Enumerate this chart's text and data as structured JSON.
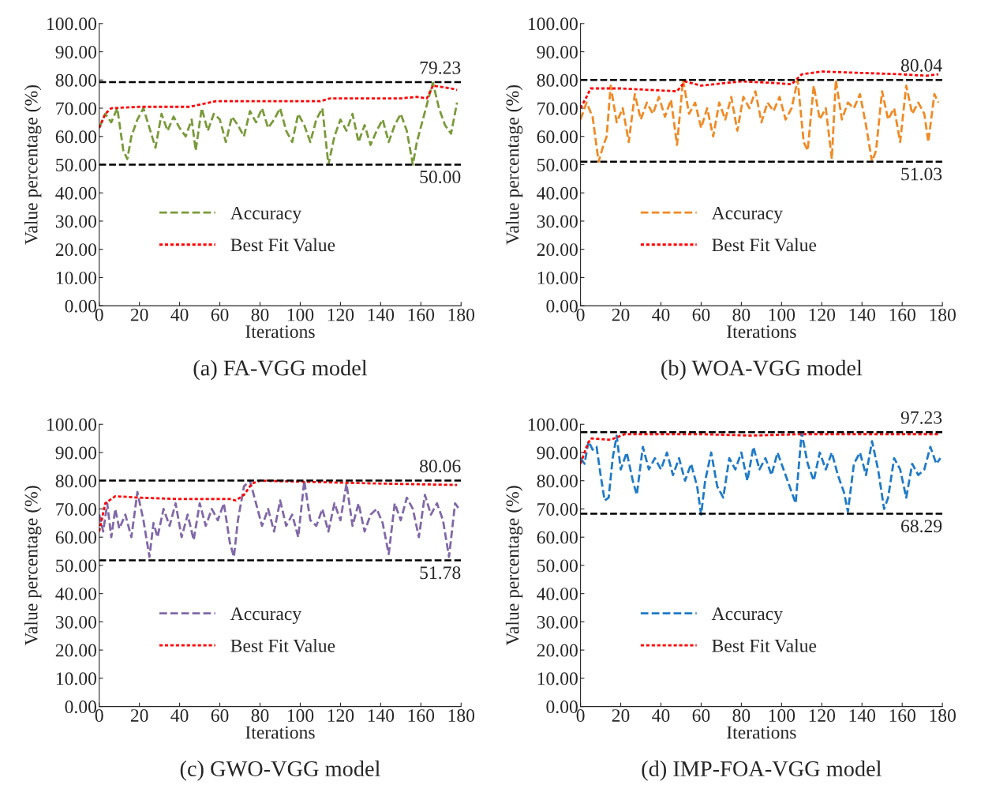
{
  "chart_data": [
    {
      "type": "line",
      "title": "(a) FA-VGG model",
      "xlabel": "Iterations",
      "ylabel": "Value percentage (%)",
      "xlim": [
        0,
        180
      ],
      "xticks": [
        0,
        20,
        40,
        60,
        80,
        100,
        120,
        140,
        160,
        180
      ],
      "ylim": [
        0,
        100
      ],
      "yticks": [
        {
          "value": 0,
          "label": "0.00"
        },
        {
          "value": 10,
          "label": "10.00"
        },
        {
          "value": 20,
          "label": "20.00"
        },
        {
          "value": 30,
          "label": "30.00"
        },
        {
          "value": 40,
          "label": "40.00"
        },
        {
          "value": 50,
          "label": "50.00"
        },
        {
          "value": 60,
          "label": "60.00"
        },
        {
          "value": 70,
          "label": "70.00"
        },
        {
          "value": 80,
          "label": "80.00"
        },
        {
          "value": 90,
          "label": "90.00"
        },
        {
          "value": 100,
          "label": "100.00"
        }
      ],
      "grid": false,
      "legend": "bottom left",
      "marker": "none",
      "series": [
        {
          "name": "Accuracy",
          "color": "#7a9a3a",
          "line_style": "dashed",
          "x": [
            0,
            3,
            6,
            9,
            12,
            14,
            16,
            19,
            22,
            25,
            28,
            31,
            34,
            37,
            40,
            43,
            46,
            48,
            51,
            54,
            57,
            60,
            63,
            66,
            69,
            72,
            75,
            78,
            81,
            84,
            87,
            90,
            93,
            96,
            99,
            102,
            105,
            108,
            111,
            114,
            117,
            120,
            123,
            126,
            129,
            132,
            135,
            138,
            141,
            144,
            147,
            150,
            153,
            156,
            158,
            161,
            164,
            166,
            169,
            172,
            175,
            178
          ],
          "values": [
            63,
            68,
            65,
            70,
            55,
            52,
            60,
            66,
            70,
            63,
            56,
            68,
            62,
            67,
            63,
            60,
            66,
            55,
            70,
            62,
            68,
            66,
            58,
            67,
            64,
            60,
            69,
            65,
            70,
            63,
            66,
            70,
            62,
            58,
            68,
            64,
            58,
            66,
            70,
            50,
            60,
            66,
            62,
            68,
            58,
            64,
            57,
            62,
            66,
            58,
            64,
            68,
            62,
            50,
            58,
            66,
            74,
            79,
            70,
            64,
            61,
            72
          ]
        },
        {
          "name": "Best Fit Value",
          "color": "#ff0000",
          "line_style": "dotted",
          "x": [
            0,
            3,
            6,
            20,
            45,
            58,
            80,
            110,
            115,
            150,
            158,
            163,
            166,
            175,
            178
          ],
          "values": [
            63,
            68,
            70,
            70.5,
            70.5,
            72.5,
            72.5,
            72.5,
            73.5,
            73.5,
            74,
            73.5,
            78,
            77,
            76.5
          ]
        }
      ],
      "ref_lines": [
        {
          "axis": "y",
          "value": 79.23,
          "label": "79.23",
          "color": "#000000",
          "line_style": "dashed"
        },
        {
          "axis": "y",
          "value": 50.0,
          "label": "50.00",
          "color": "#000000",
          "line_style": "dashed"
        }
      ]
    },
    {
      "type": "line",
      "title": "(b) WOA-VGG model",
      "xlabel": "Iterations",
      "ylabel": "Value percentage (%)",
      "xlim": [
        0,
        180
      ],
      "xticks": [
        0,
        20,
        40,
        60,
        80,
        100,
        120,
        140,
        160,
        180
      ],
      "ylim": [
        0,
        100
      ],
      "yticks": [
        {
          "value": 0,
          "label": "0.00"
        },
        {
          "value": 10,
          "label": "10.00"
        },
        {
          "value": 20,
          "label": "20.00"
        },
        {
          "value": 30,
          "label": "30.00"
        },
        {
          "value": 40,
          "label": "40.00"
        },
        {
          "value": 50,
          "label": "50.00"
        },
        {
          "value": 60,
          "label": "60.00"
        },
        {
          "value": 70,
          "label": "70.00"
        },
        {
          "value": 80,
          "label": "80.00"
        },
        {
          "value": 90,
          "label": "90.00"
        },
        {
          "value": 100,
          "label": "100.00"
        }
      ],
      "grid": false,
      "legend": "bottom left",
      "marker": "none",
      "series": [
        {
          "name": "Accuracy",
          "color": "#f08a24",
          "line_style": "dashed",
          "x": [
            0,
            3,
            6,
            9,
            11,
            13,
            15,
            18,
            21,
            24,
            27,
            30,
            33,
            36,
            39,
            42,
            45,
            48,
            51,
            54,
            57,
            60,
            63,
            66,
            69,
            72,
            75,
            78,
            81,
            84,
            87,
            90,
            93,
            96,
            99,
            102,
            105,
            108,
            111,
            113,
            116,
            119,
            122,
            125,
            127,
            130,
            133,
            136,
            139,
            142,
            145,
            147,
            150,
            153,
            156,
            159,
            162,
            165,
            168,
            171,
            173,
            176,
            178
          ],
          "values": [
            66,
            72,
            67,
            51,
            56,
            60,
            78,
            65,
            70,
            58,
            75,
            66,
            72,
            68,
            74,
            67,
            73,
            57,
            80,
            68,
            72,
            63,
            70,
            60,
            72,
            66,
            74,
            62,
            74,
            70,
            76,
            65,
            72,
            69,
            74,
            66,
            70,
            80,
            58,
            55,
            78,
            66,
            70,
            52,
            80,
            66,
            72,
            70,
            75,
            64,
            51,
            55,
            76,
            66,
            70,
            58,
            78,
            68,
            72,
            68,
            58,
            75,
            72
          ]
        },
        {
          "name": "Best Fit Value",
          "color": "#ff0000",
          "line_style": "dotted",
          "x": [
            0,
            3,
            5,
            20,
            48,
            52,
            60,
            80,
            95,
            105,
            110,
            120,
            160,
            172,
            178
          ],
          "values": [
            70,
            74,
            77,
            77,
            76,
            79.5,
            78,
            79.5,
            79,
            78.5,
            82,
            83,
            82,
            81.5,
            82
          ]
        }
      ],
      "ref_lines": [
        {
          "axis": "y",
          "value": 80.04,
          "label": "80.04",
          "color": "#000000",
          "line_style": "dashed"
        },
        {
          "axis": "y",
          "value": 51.03,
          "label": "51.03",
          "color": "#000000",
          "line_style": "dashed"
        }
      ]
    },
    {
      "type": "line",
      "title": "(c) GWO-VGG model",
      "xlabel": "Iterations",
      "ylabel": "Value percentage (%)",
      "xlim": [
        0,
        180
      ],
      "xticks": [
        0,
        20,
        40,
        60,
        80,
        100,
        120,
        140,
        160,
        180
      ],
      "ylim": [
        0,
        100
      ],
      "yticks": [
        {
          "value": 0,
          "label": "0.00"
        },
        {
          "value": 10,
          "label": "10.00"
        },
        {
          "value": 20,
          "label": "20.00"
        },
        {
          "value": 30,
          "label": "30.00"
        },
        {
          "value": 40,
          "label": "40.00"
        },
        {
          "value": 50,
          "label": "50.00"
        },
        {
          "value": 60,
          "label": "60.00"
        },
        {
          "value": 70,
          "label": "70.00"
        },
        {
          "value": 80,
          "label": "80.00"
        },
        {
          "value": 90,
          "label": "90.00"
        },
        {
          "value": 100,
          "label": "100.00"
        }
      ],
      "grid": false,
      "legend": "bottom left",
      "marker": "none",
      "series": [
        {
          "name": "Accuracy",
          "color": "#8068a8",
          "line_style": "dashed",
          "x": [
            0,
            2,
            4,
            6,
            8,
            10,
            13,
            16,
            19,
            22,
            25,
            27,
            29,
            32,
            35,
            38,
            41,
            44,
            47,
            50,
            53,
            56,
            59,
            62,
            65,
            67,
            69,
            72,
            75,
            78,
            81,
            84,
            87,
            90,
            93,
            96,
            99,
            102,
            105,
            108,
            111,
            114,
            117,
            120,
            123,
            126,
            129,
            132,
            135,
            138,
            141,
            144,
            147,
            150,
            153,
            156,
            159,
            162,
            165,
            168,
            171,
            174,
            177,
            179
          ],
          "values": [
            68,
            62,
            72,
            60,
            70,
            63,
            68,
            60,
            76,
            66,
            53,
            65,
            60,
            70,
            64,
            72,
            60,
            68,
            59,
            72,
            64,
            70,
            66,
            72,
            58,
            53,
            66,
            78,
            80,
            72,
            64,
            70,
            62,
            73,
            64,
            68,
            60,
            80,
            66,
            64,
            70,
            62,
            72,
            66,
            79,
            64,
            72,
            62,
            68,
            70,
            65,
            54,
            72,
            66,
            74,
            70,
            60,
            75,
            68,
            72,
            66,
            53,
            72,
            70
          ]
        },
        {
          "name": "Best Fit Value",
          "color": "#ff0000",
          "line_style": "dotted",
          "x": [
            0,
            3,
            8,
            20,
            40,
            65,
            68,
            72,
            76,
            80,
            110,
            140,
            178
          ],
          "values": [
            62,
            72,
            74.5,
            74,
            73.5,
            73.5,
            73,
            75,
            79,
            80,
            79.5,
            79,
            78.5
          ]
        }
      ],
      "ref_lines": [
        {
          "axis": "y",
          "value": 80.06,
          "label": "80.06",
          "color": "#000000",
          "line_style": "dashed"
        },
        {
          "axis": "y",
          "value": 51.78,
          "label": "51.78",
          "color": "#000000",
          "line_style": "dashed"
        }
      ]
    },
    {
      "type": "line",
      "title": "(d) IMP-FOA-VGG model",
      "xlabel": "Iterations",
      "ylabel": "Value percentage (%)",
      "xlim": [
        0,
        180
      ],
      "xticks": [
        0,
        20,
        40,
        60,
        80,
        100,
        120,
        140,
        160,
        180
      ],
      "ylim": [
        0,
        100
      ],
      "yticks": [
        {
          "value": 0,
          "label": "0.00"
        },
        {
          "value": 10,
          "label": "10.00"
        },
        {
          "value": 20,
          "label": "20.00"
        },
        {
          "value": 30,
          "label": "30.00"
        },
        {
          "value": 40,
          "label": "40.00"
        },
        {
          "value": 50,
          "label": "50.00"
        },
        {
          "value": 60,
          "label": "60.00"
        },
        {
          "value": 70,
          "label": "70.00"
        },
        {
          "value": 80,
          "label": "80.00"
        },
        {
          "value": 90,
          "label": "90.00"
        },
        {
          "value": 100,
          "label": "100.00"
        }
      ],
      "grid": false,
      "legend": "bottom left",
      "marker": "none",
      "series": [
        {
          "name": "Accuracy",
          "color": "#1f7ac8",
          "line_style": "dashed",
          "x": [
            0,
            2,
            4,
            6,
            8,
            10,
            12,
            14,
            16,
            18,
            20,
            23,
            26,
            28,
            31,
            34,
            37,
            40,
            43,
            46,
            49,
            52,
            55,
            58,
            60,
            62,
            65,
            68,
            71,
            74,
            77,
            80,
            83,
            86,
            89,
            92,
            95,
            98,
            101,
            104,
            107,
            110,
            113,
            116,
            119,
            122,
            125,
            128,
            131,
            133,
            136,
            139,
            142,
            145,
            148,
            151,
            153,
            156,
            159,
            162,
            165,
            168,
            171,
            174,
            177,
            179
          ],
          "values": [
            88,
            86,
            94,
            91,
            92,
            82,
            73,
            74,
            88,
            96,
            84,
            90,
            80,
            75,
            92,
            84,
            88,
            84,
            90,
            82,
            88,
            80,
            86,
            78,
            68,
            80,
            90,
            78,
            74,
            88,
            84,
            90,
            80,
            92,
            84,
            88,
            82,
            90,
            84,
            78,
            72,
            97,
            86,
            80,
            90,
            84,
            90,
            82,
            76,
            69,
            86,
            90,
            82,
            94,
            84,
            70,
            74,
            88,
            84,
            74,
            86,
            82,
            84,
            92,
            86,
            88
          ]
        },
        {
          "name": "Best Fit Value",
          "color": "#ff0000",
          "line_style": "dotted",
          "x": [
            0,
            3,
            5,
            15,
            22,
            60,
            85,
            110,
            178
          ],
          "values": [
            86,
            92,
            95,
            94.5,
            96.5,
            96.5,
            96,
            96.5,
            96.5
          ]
        }
      ],
      "ref_lines": [
        {
          "axis": "y",
          "value": 97.23,
          "label": "97.23",
          "color": "#000000",
          "line_style": "dashed"
        },
        {
          "axis": "y",
          "value": 68.29,
          "label": "68.29",
          "color": "#000000",
          "line_style": "dashed"
        }
      ]
    }
  ]
}
